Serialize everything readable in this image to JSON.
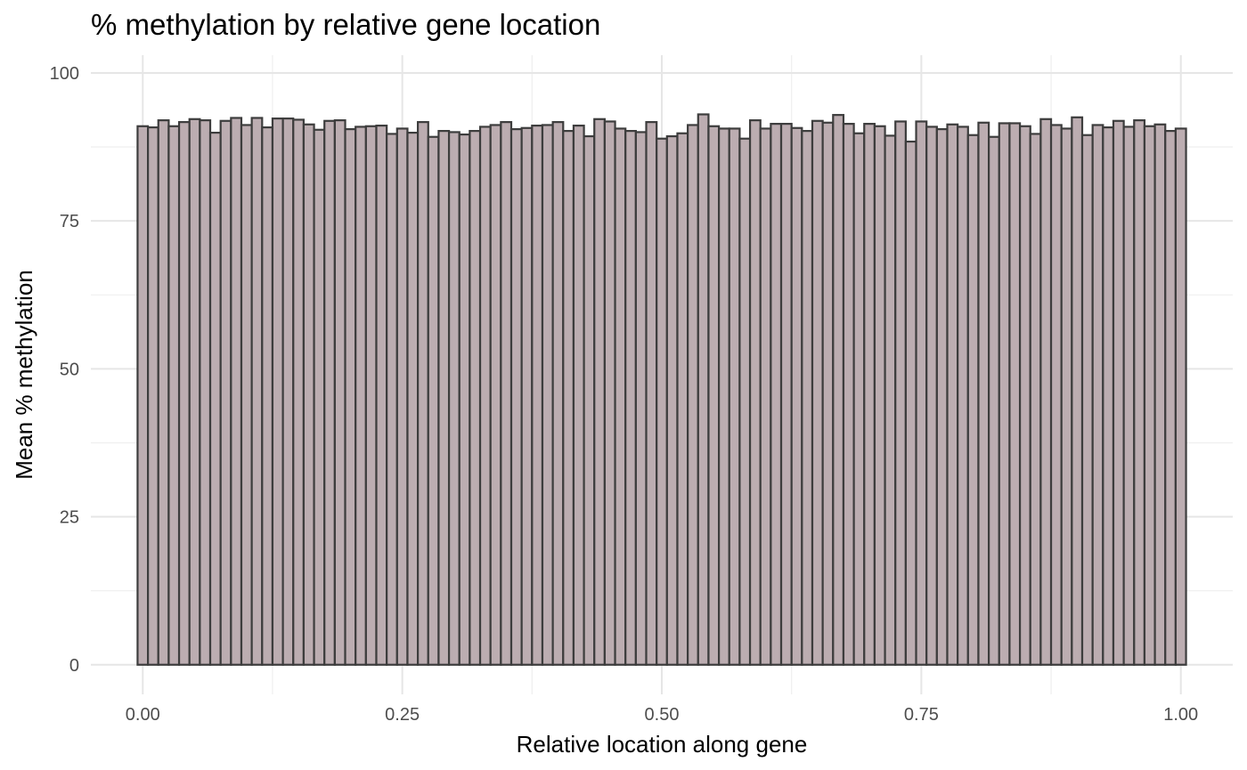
{
  "chart_data": {
    "type": "bar",
    "title": "% methylation by relative gene location",
    "xlabel": "Relative location along gene",
    "ylabel": "Mean % methylation",
    "xlim": [
      -0.05,
      1.05
    ],
    "ylim": [
      -5,
      103
    ],
    "x_ticks": [
      0,
      0.25,
      0.5,
      0.75,
      1.0
    ],
    "x_tick_labels": [
      "0.00",
      "0.25",
      "0.50",
      "0.75",
      "1.00"
    ],
    "y_ticks": [
      0,
      25,
      50,
      75,
      100
    ],
    "y_tick_labels": [
      "0",
      "25",
      "50",
      "75",
      "100"
    ],
    "grid": true,
    "bar_fill": "#bcadb1",
    "bar_stroke": "#3d3d3d",
    "bin_start": -0.005,
    "bin_width": 0.01,
    "values": [
      91.0,
      90.8,
      92.0,
      91.0,
      91.7,
      92.2,
      92.0,
      89.9,
      91.9,
      92.4,
      91.2,
      92.4,
      90.8,
      92.3,
      92.3,
      92.1,
      91.3,
      90.4,
      91.9,
      92.0,
      90.5,
      90.9,
      91.0,
      91.1,
      89.7,
      90.6,
      89.9,
      91.7,
      89.2,
      90.2,
      90.0,
      89.6,
      90.2,
      90.9,
      91.2,
      91.7,
      90.5,
      90.7,
      91.1,
      91.2,
      91.7,
      90.2,
      91.1,
      89.3,
      92.2,
      91.8,
      90.6,
      90.2,
      90.0,
      91.7,
      88.9,
      89.3,
      89.8,
      91.2,
      93.0,
      91.0,
      90.6,
      90.6,
      88.9,
      92.0,
      90.6,
      91.4,
      91.4,
      90.7,
      90.2,
      91.9,
      91.6,
      92.9,
      91.4,
      89.8,
      91.4,
      91.0,
      89.4,
      91.8,
      88.4,
      91.8,
      90.9,
      90.5,
      91.3,
      90.9,
      89.5,
      91.6,
      89.2,
      91.5,
      91.5,
      91.0,
      89.7,
      92.2,
      91.2,
      90.6,
      92.5,
      89.5,
      91.2,
      90.8,
      91.9,
      90.9,
      92.0,
      91.0,
      91.3,
      90.2,
      90.6
    ]
  }
}
